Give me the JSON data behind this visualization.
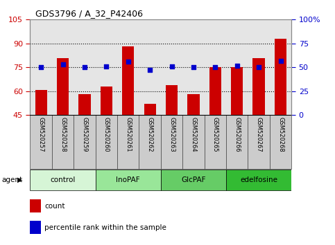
{
  "title": "GDS3796 / A_32_P42406",
  "samples": [
    "GSM520257",
    "GSM520258",
    "GSM520259",
    "GSM520260",
    "GSM520261",
    "GSM520262",
    "GSM520263",
    "GSM520264",
    "GSM520265",
    "GSM520266",
    "GSM520267",
    "GSM520268"
  ],
  "counts": [
    61,
    81,
    58,
    63,
    88,
    52,
    64,
    58,
    75,
    75,
    81,
    93
  ],
  "percentile_ranks": [
    50,
    53,
    50,
    51,
    56,
    47,
    51,
    50,
    50,
    52,
    50,
    57
  ],
  "ylim_left": [
    45,
    105
  ],
  "ylim_right": [
    0,
    100
  ],
  "yticks_left": [
    45,
    60,
    75,
    90,
    105
  ],
  "ytick_labels_left": [
    "45",
    "60",
    "75",
    "90",
    "105"
  ],
  "yticks_right": [
    0,
    25,
    50,
    75,
    100
  ],
  "ytick_labels_right": [
    "0",
    "25",
    "50",
    "75",
    "100%"
  ],
  "bar_color": "#cc0000",
  "dot_color": "#0000cc",
  "bar_width": 0.55,
  "groups": [
    {
      "label": "control",
      "start": 0,
      "end": 3,
      "color": "#d6f5d6"
    },
    {
      "label": "InoPAF",
      "start": 3,
      "end": 6,
      "color": "#99e699"
    },
    {
      "label": "GlcPAF",
      "start": 6,
      "end": 9,
      "color": "#66cc66"
    },
    {
      "label": "edelfosine",
      "start": 9,
      "end": 12,
      "color": "#33bb33"
    }
  ],
  "legend_count_color": "#cc0000",
  "legend_dot_color": "#0000cc",
  "agent_label": "agent",
  "background_color": "#ffffff",
  "tick_label_color_left": "#cc0000",
  "tick_label_color_right": "#0000cc",
  "grid_color": "#000000",
  "sample_bg_color": "#cccccc",
  "hgrid_values": [
    60,
    75,
    90
  ]
}
